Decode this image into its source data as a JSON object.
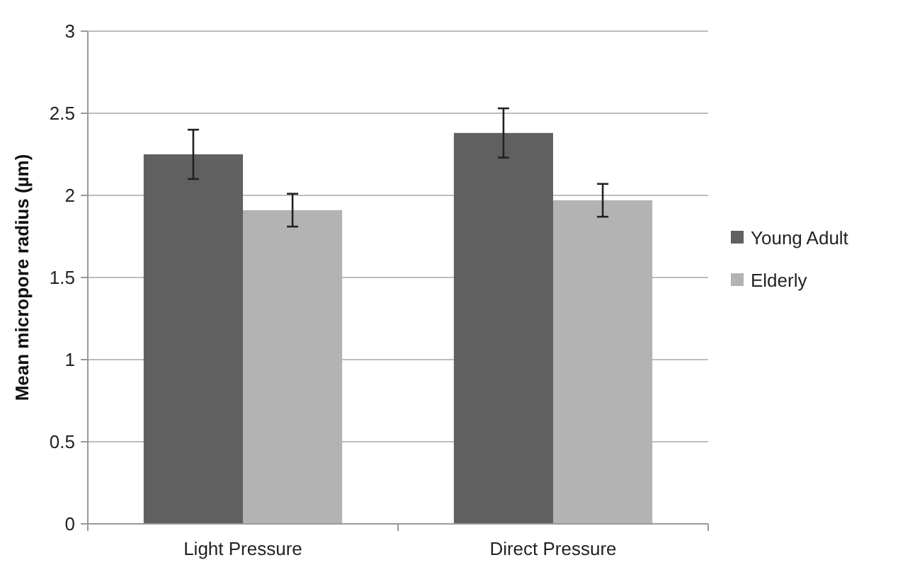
{
  "chart_data": {
    "type": "bar",
    "ylabel": "Mean micropore radius (µm)",
    "categories": [
      "Light Pressure",
      "Direct Pressure"
    ],
    "series": [
      {
        "name": "Young Adult",
        "color": "#606060",
        "values": [
          2.25,
          2.38
        ],
        "errors": [
          0.15,
          0.15
        ]
      },
      {
        "name": "Elderly",
        "color": "#b3b3b3",
        "values": [
          1.91,
          1.97
        ],
        "errors": [
          0.1,
          0.1
        ]
      }
    ],
    "ylim": [
      0,
      3
    ],
    "yticks": [
      0,
      0.5,
      1,
      1.5,
      2,
      2.5,
      3
    ],
    "grid": "y",
    "legend": "right"
  }
}
